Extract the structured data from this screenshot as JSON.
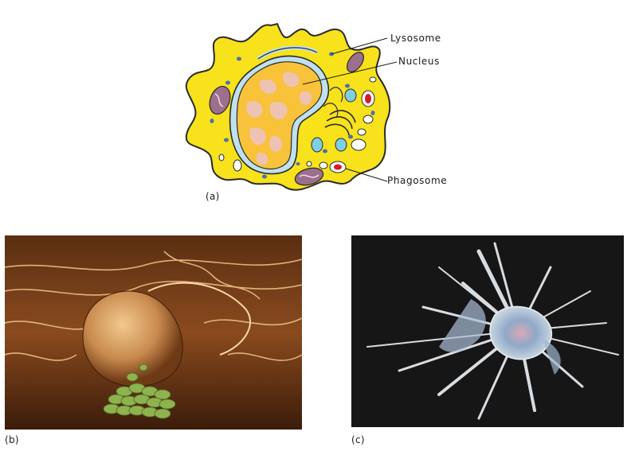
{
  "panels": {
    "a": {
      "label": "(a)",
      "callouts": {
        "lysosome": "Lysosome",
        "nucleus": "Nucleus",
        "phagosome": "Phagosome"
      }
    },
    "b": {
      "label": "(b)"
    },
    "c": {
      "label": "(c)"
    }
  },
  "colors": {
    "cytoplasm": "#f7e21b",
    "nucleus": "#f8c23a",
    "chromatin": "#efc3b3",
    "er": "#bfe0ef",
    "mitochondria": "#9c6f8e",
    "vesicle_blue": "#4d6fae",
    "vacuole_cyan": "#7ecfe2",
    "phagosome_red": "#d9182b"
  }
}
